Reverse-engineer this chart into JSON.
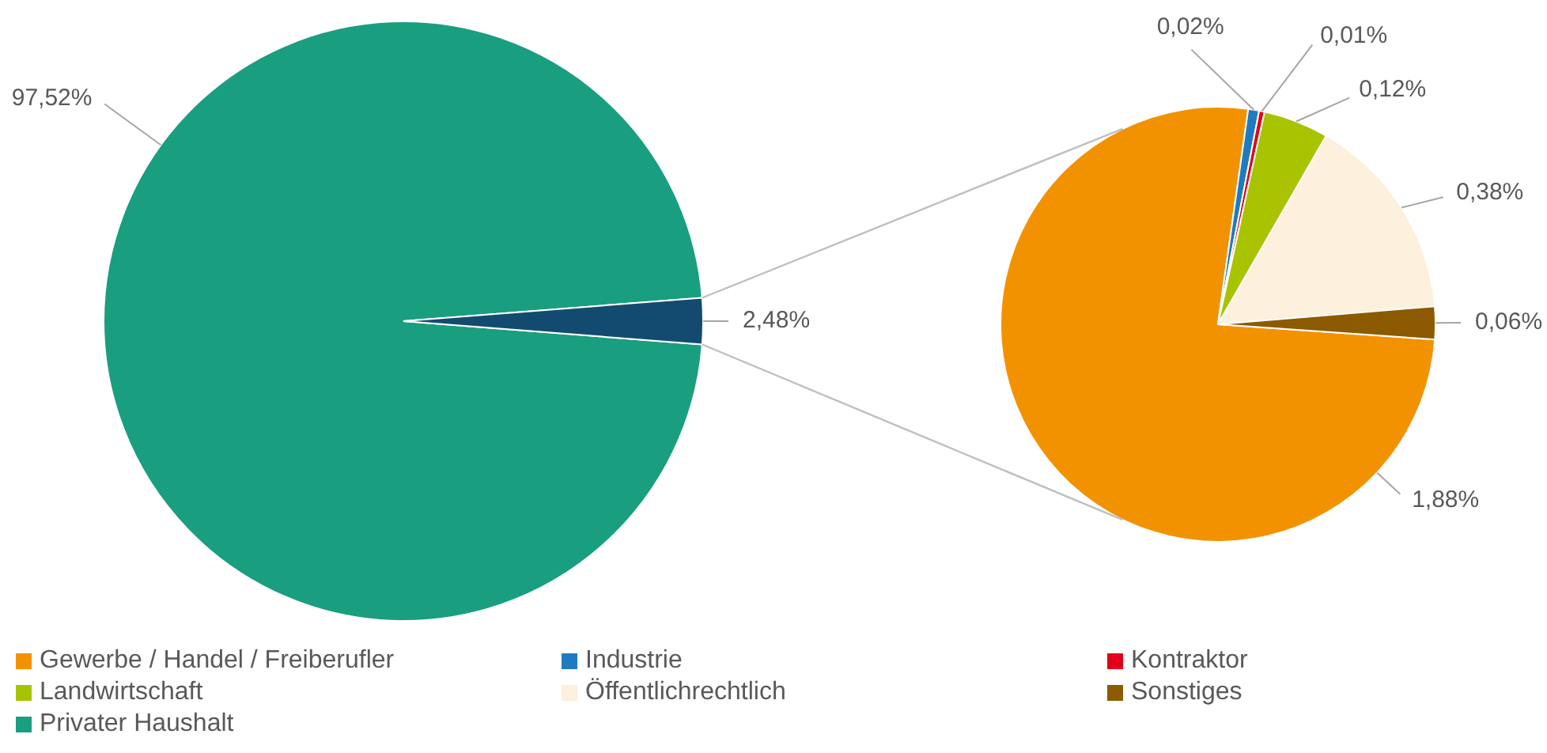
{
  "chart_data": [
    {
      "type": "pie",
      "categories": [
        "Privater Haushalt",
        null
      ],
      "values": [
        97.52,
        2.48
      ],
      "colors": [
        "#1a9e80",
        "#134b70"
      ],
      "value_labels": [
        "97,52%",
        "2,48%"
      ],
      "legend": "bottom"
    },
    {
      "type": "pie",
      "categories": [
        "Gewerbe / Handel / Freiberufler",
        "Industrie",
        "Kontraktor",
        "Landwirtschaft",
        "Öffentlichrechtlich",
        "Sonstiges"
      ],
      "values": [
        1.88,
        0.02,
        0.01,
        0.12,
        0.38,
        0.06
      ],
      "colors": [
        "#f39200",
        "#1f7bc0",
        "#e2001a",
        "#a8c300",
        "#fdf0dc",
        "#8c5a00"
      ],
      "value_labels": [
        "1,88%",
        "0,02%",
        "0,01%",
        "0,12%",
        "0,38%",
        "0,06%"
      ],
      "legend": "bottom"
    }
  ]
}
